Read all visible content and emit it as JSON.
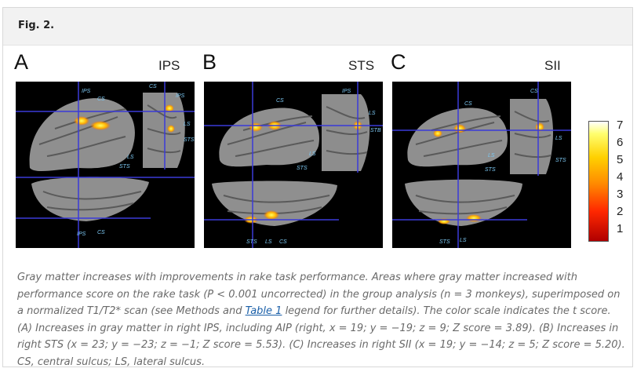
{
  "figure": {
    "label": "Fig. 2.",
    "colorscale": {
      "min": 1,
      "max": 7,
      "ticks": [
        "7",
        "6",
        "5",
        "4",
        "3",
        "2",
        "1"
      ]
    },
    "panels": [
      {
        "letter": "A",
        "region": "IPS",
        "labels": [
          "IPS",
          "CS",
          "CS",
          "IPS",
          "LS",
          "STS",
          "LS",
          "STS",
          "IPS",
          "CS"
        ]
      },
      {
        "letter": "B",
        "region": "STS",
        "labels": [
          "CS",
          "IPS",
          "LS",
          "STB",
          "LS",
          "STS",
          "STS",
          "LS",
          "CS"
        ]
      },
      {
        "letter": "C",
        "region": "SII",
        "labels": [
          "CS",
          "CS",
          "LS",
          "STS",
          "LS",
          "STS",
          "STS",
          "LS"
        ]
      }
    ]
  },
  "caption": {
    "part1": "Gray matter increases with improvements in rake task performance. Areas where gray matter increased with performance score on the rake task (P < 0.001 uncorrected) in the group analysis (n = 3 monkeys), superimposed on a normalized T1/T2* scan (see Methods and ",
    "link": "Table 1",
    "part2": " legend for further details). The color scale indicates the t score. (A) Increases in gray matter in right IPS, including AIP (right, x = 19; y = −19; z = 9; Z score = 3.89). (B) Increases in right STS (x = 23; y = −23; z = −1; Z score = 5.53). (C) Increases in right SII (x = 19; y = −14; z = 5; Z score = 5.20). CS, central sulcus; LS, lateral sulcus."
  }
}
